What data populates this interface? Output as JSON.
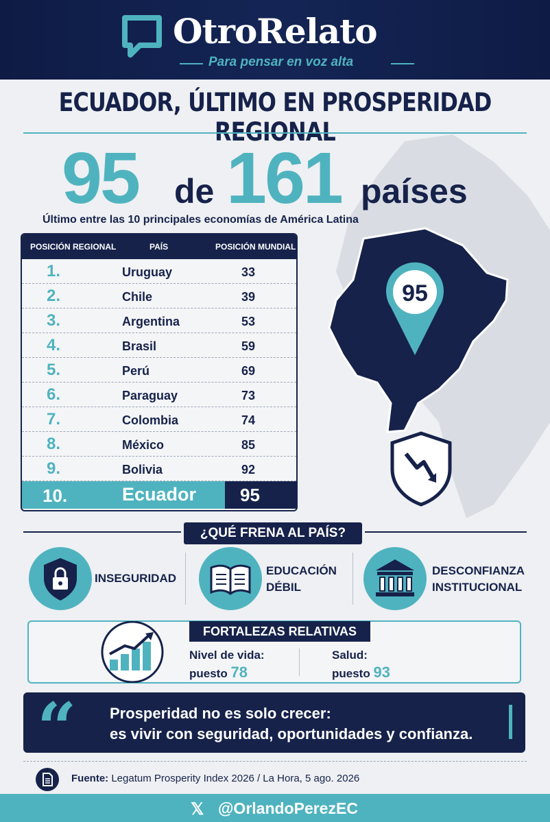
{
  "header": {
    "brand": "OtroRelato",
    "tagline": "Para pensar en voz alta"
  },
  "title": "ECUADOR, ÚLTIMO EN PROSPERIDAD REGIONAL",
  "headline": {
    "rank": "95",
    "connector": "de",
    "total": "161",
    "unit": "países",
    "subtitle": "Último entre las 10 principales economías de América Latina"
  },
  "table": {
    "headers": [
      "POSICIÓN REGIONAL",
      "PAÍS",
      "POSICIÓN MUNDIAL"
    ],
    "rows": [
      {
        "pos": "1.",
        "country": "Uruguay",
        "world": "33"
      },
      {
        "pos": "2.",
        "country": "Chile",
        "world": "39"
      },
      {
        "pos": "3.",
        "country": "Argentina",
        "world": "53"
      },
      {
        "pos": "4.",
        "country": "Brasil",
        "world": "59"
      },
      {
        "pos": "5.",
        "country": "Perú",
        "world": "69"
      },
      {
        "pos": "6.",
        "country": "Paraguay",
        "world": "73"
      },
      {
        "pos": "7.",
        "country": "Colombia",
        "world": "74"
      },
      {
        "pos": "8.",
        "country": "México",
        "world": "85"
      },
      {
        "pos": "9.",
        "country": "Bolivia",
        "world": "92"
      }
    ],
    "highlight": {
      "pos": "10.",
      "country": "Ecuador",
      "world": "95"
    }
  },
  "map": {
    "pin_label": "95",
    "accent": "#4fb3bf",
    "navy": "#16224a"
  },
  "obstacles": {
    "title": "¿QUÉ FRENA AL PAÍS?",
    "items": [
      {
        "icon": "lock-shield-icon",
        "line1": "INSEGURIDAD",
        "line2": ""
      },
      {
        "icon": "book-icon",
        "line1": "EDUCACIÓN",
        "line2": "DÉBIL"
      },
      {
        "icon": "institution-icon",
        "line1": "DESCONFIANZA",
        "line2": "INSTITUCIONAL"
      }
    ]
  },
  "strengths": {
    "title": "FORTALEZAS RELATIVAS",
    "a": {
      "label": "Nivel de vida:",
      "prefix": "puesto",
      "value": "78"
    },
    "b": {
      "label": "Salud:",
      "prefix": "puesto",
      "value": "93"
    }
  },
  "quote": {
    "mark": "“",
    "line1": "Prosperidad no es solo crecer:",
    "line2": "es vivir con seguridad, oportunidades y confianza."
  },
  "source": {
    "label": "Fuente:",
    "text": "Legatum Prosperity Index 2026 / La Hora, 5 ago. 2026"
  },
  "footer": {
    "x_glyph": "𝕏",
    "handle": "@OrlandoPerezEC"
  }
}
